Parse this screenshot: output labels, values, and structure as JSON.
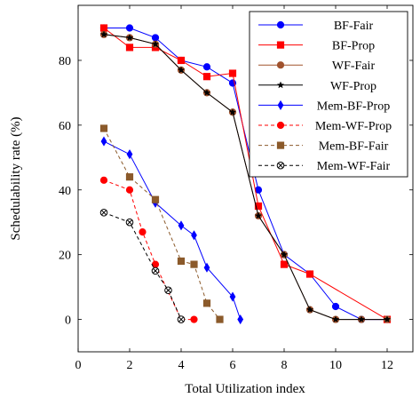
{
  "chart_data": {
    "type": "line",
    "xlabel": "Total Utilization index",
    "ylabel": "Schedulability rate (%)",
    "xlim": [
      0,
      13
    ],
    "ylim": [
      -10,
      97
    ],
    "xticks": [
      0,
      2,
      4,
      6,
      8,
      10,
      12
    ],
    "yticks": [
      0,
      20,
      40,
      60,
      80
    ],
    "legend_position": "top-right",
    "series": [
      {
        "name": "BF-Fair",
        "color": "#0000ff",
        "marker": "circle",
        "dash": "solid",
        "x": [
          1,
          2,
          3,
          4,
          5,
          6,
          7,
          8,
          9,
          10,
          11,
          12
        ],
        "y": [
          90,
          90,
          87,
          80,
          78,
          73,
          40,
          20,
          14,
          4,
          0,
          0
        ]
      },
      {
        "name": "BF-Prop",
        "color": "#ff0000",
        "marker": "square",
        "dash": "solid",
        "x": [
          1,
          2,
          3,
          4,
          5,
          6,
          7,
          8,
          9,
          12
        ],
        "y": [
          90,
          84,
          84,
          80,
          75,
          76,
          35,
          17,
          14,
          0
        ]
      },
      {
        "name": "WF-Fair",
        "color": "#a0522d",
        "marker": "circle",
        "dash": "solid",
        "x": [
          1,
          2,
          3,
          4,
          5,
          6,
          7,
          8,
          9,
          10,
          11,
          12
        ],
        "y": [
          88,
          87,
          85,
          77,
          70,
          64,
          32,
          20,
          3,
          0,
          0,
          0
        ]
      },
      {
        "name": "WF-Prop",
        "color": "#000000",
        "marker": "star",
        "dash": "solid",
        "x": [
          1,
          2,
          3,
          4,
          5,
          6,
          7,
          8,
          9,
          10,
          11,
          12
        ],
        "y": [
          88,
          87,
          85,
          77,
          70,
          64,
          32,
          20,
          3,
          0,
          0,
          0
        ]
      },
      {
        "name": "Mem-BF-Prop",
        "color": "#0000ff",
        "marker": "diamond",
        "dash": "solid",
        "x": [
          1,
          2,
          3,
          4,
          4.5,
          5,
          6,
          6.3
        ],
        "y": [
          55,
          51,
          36,
          29,
          26,
          16,
          7,
          0
        ]
      },
      {
        "name": "Mem-WF-Prop",
        "color": "#ff0000",
        "marker": "circle",
        "dash": "dashed",
        "x": [
          1,
          2,
          2.5,
          3,
          4,
          4.5
        ],
        "y": [
          43,
          40,
          27,
          17,
          0,
          0
        ]
      },
      {
        "name": "Mem-BF-Fair",
        "color": "#8b5a2b",
        "marker": "square",
        "dash": "dashed",
        "x": [
          1,
          2,
          3,
          4,
          4.5,
          5,
          5.5
        ],
        "y": [
          59,
          44,
          37,
          18,
          17,
          5,
          0
        ]
      },
      {
        "name": "Mem-WF-Fair",
        "color": "#000000",
        "marker": "circle-x",
        "dash": "dashed",
        "x": [
          1,
          2,
          3,
          3.5,
          4
        ],
        "y": [
          33,
          30,
          15,
          9,
          0
        ]
      }
    ]
  }
}
